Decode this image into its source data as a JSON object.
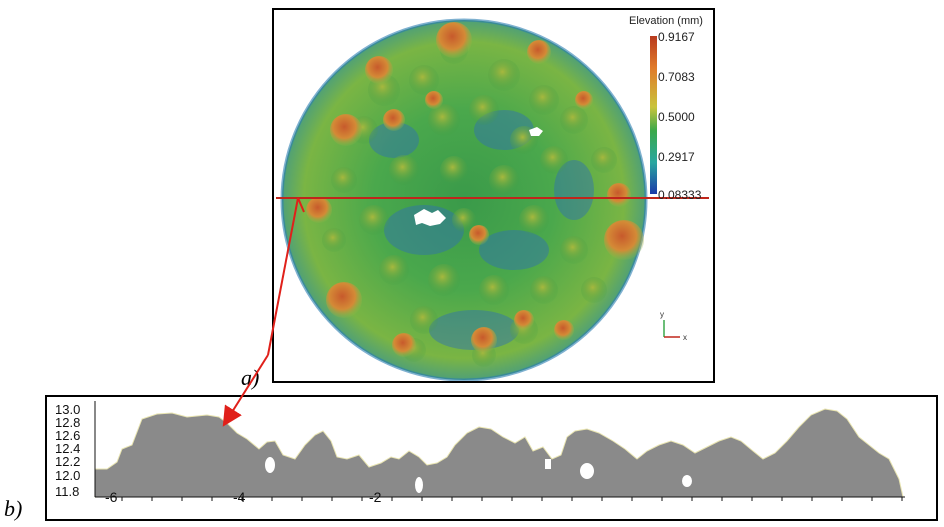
{
  "panel_a": {
    "label": "a)",
    "colorbar": {
      "title": "Elevation (mm)",
      "ticks": [
        "0.9167",
        "0.7083",
        "0.5000",
        "0.2917",
        "0.08333"
      ],
      "colors": [
        "#b83a1e",
        "#e07a2a",
        "#c9c43c",
        "#3aa84a",
        "#2aa7a0",
        "#1b3aa8"
      ]
    }
  },
  "panel_b": {
    "label": "b)",
    "y_ticks": [
      "13.0",
      "12.8",
      "12.6",
      "12.4",
      "12.2",
      "12.0",
      "11.8"
    ],
    "x_ticks": [
      "-6",
      "-4",
      "-2"
    ],
    "fill_color": "#8a8a8a"
  },
  "arrow_color": "#e0201a",
  "section_line_color": "#c0261b"
}
